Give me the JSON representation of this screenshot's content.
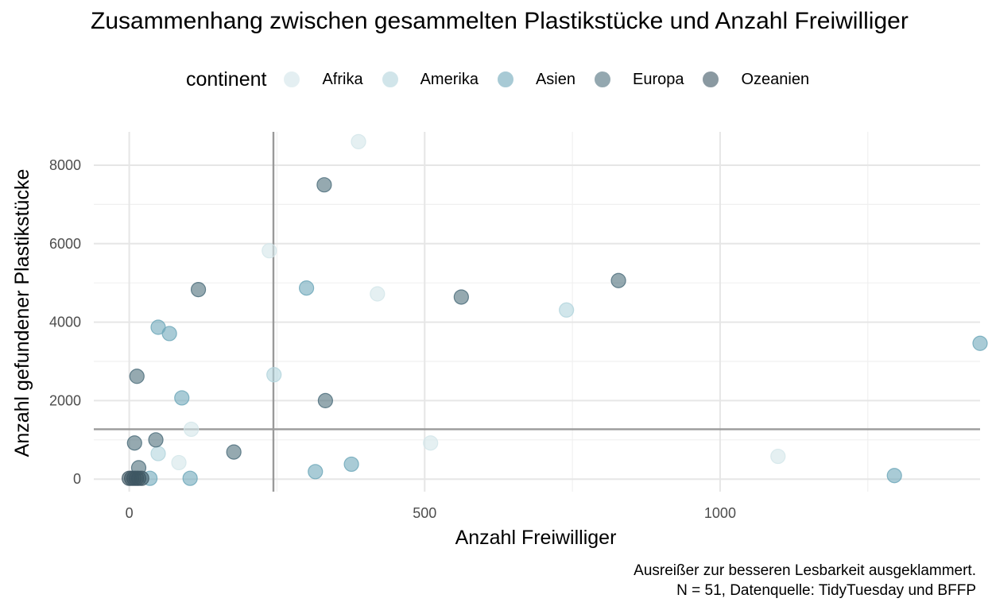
{
  "chart_data": {
    "type": "scatter",
    "title": "Zusammenhang zwischen gesammelten Plastikstücke und Anzahl Freiwilliger",
    "xlabel": "Anzahl Freiwilliger",
    "ylabel": "Anzahl gefundener Plastikstücke",
    "caption_lines": [
      "Ausreißer zur besseren Lesbarkeit ausgeklammert.",
      "N = 51, Datenquelle: TidyTuesday und BFFP"
    ],
    "xlim": [
      -60,
      1440
    ],
    "ylim": [
      -320,
      8850
    ],
    "xticks": [
      0,
      500,
      1000
    ],
    "xtick_labels": [
      "0",
      "500",
      "1000"
    ],
    "yticks": [
      0,
      2000,
      4000,
      6000,
      8000
    ],
    "ytick_labels": [
      "0",
      "2000",
      "4000",
      "6000",
      "8000"
    ],
    "grid": true,
    "legend": {
      "title": "continent",
      "position": "top",
      "entries": [
        "Afrika",
        "Amerika",
        "Asien",
        "Europa",
        "Ozeanien"
      ],
      "colors": [
        "#d3e6ea",
        "#b3d5dd",
        "#6fa8ba",
        "#4e6f7c",
        "#3e5663"
      ]
    },
    "reference_lines": {
      "vline_x": 244,
      "hline_y": 1270,
      "color": "#9a9a9a"
    },
    "series": [
      {
        "name": "Afrika",
        "color": "#d3e6ea",
        "x": [
          388,
          237,
          420,
          105,
          84,
          510,
          1098
        ],
        "y": [
          8600,
          5820,
          4720,
          1270,
          420,
          920,
          580
        ]
      },
      {
        "name": "Amerika",
        "color": "#b3d5dd",
        "x": [
          245,
          49,
          740
        ],
        "y": [
          2660,
          650,
          4310
        ]
      },
      {
        "name": "Asien",
        "color": "#6fa8ba",
        "x": [
          300,
          49,
          68,
          89,
          1295,
          1440,
          376,
          315,
          103,
          35
        ],
        "y": [
          4870,
          3870,
          3710,
          2070,
          90,
          3460,
          380,
          190,
          20,
          20
        ]
      },
      {
        "name": "Europa",
        "color": "#4e6f7c",
        "x": [
          330,
          117,
          562,
          828,
          13,
          45,
          9,
          16,
          177,
          332
        ],
        "y": [
          7500,
          4830,
          4640,
          5060,
          2620,
          1000,
          920,
          290,
          690,
          2000
        ]
      },
      {
        "name": "Ozeanien",
        "color": "#3e5663",
        "x": [
          0,
          4,
          8,
          12,
          16,
          21
        ],
        "y": [
          20,
          20,
          20,
          20,
          20,
          20
        ]
      }
    ]
  }
}
